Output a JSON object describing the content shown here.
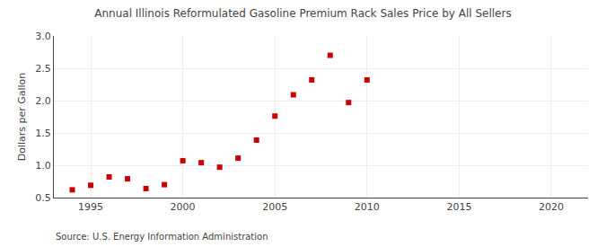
{
  "chart_data": {
    "type": "scatter",
    "title": "Annual Illinois Reformulated Gasoline Premium Rack Sales Price by All Sellers",
    "ylabel": "Dollars per Gallon",
    "annotations": [
      "Source: U.S. Energy Information Administration"
    ],
    "x": [
      1994,
      1995,
      1996,
      1997,
      1998,
      1999,
      2000,
      2001,
      2002,
      2003,
      2004,
      2005,
      2006,
      2007,
      2008,
      2009,
      2010
    ],
    "values": [
      0.62,
      0.69,
      0.82,
      0.79,
      0.64,
      0.7,
      1.07,
      1.04,
      0.97,
      1.11,
      1.39,
      1.76,
      2.09,
      2.32,
      2.7,
      1.97,
      2.32
    ],
    "color": "#cc0000",
    "marker": "square",
    "xlim": [
      1993,
      2022
    ],
    "ylim": [
      0.5,
      3.0
    ],
    "xticks": [
      1995,
      2000,
      2005,
      2010,
      2015,
      2020
    ],
    "yticks": [
      0.5,
      {
        "value": 1.0,
        "label": "1.0"
      },
      1.5,
      {
        "value": 2.0,
        "label": "2.0"
      },
      2.5,
      {
        "value": 3.0,
        "label": "3.0"
      }
    ],
    "grid": true
  }
}
